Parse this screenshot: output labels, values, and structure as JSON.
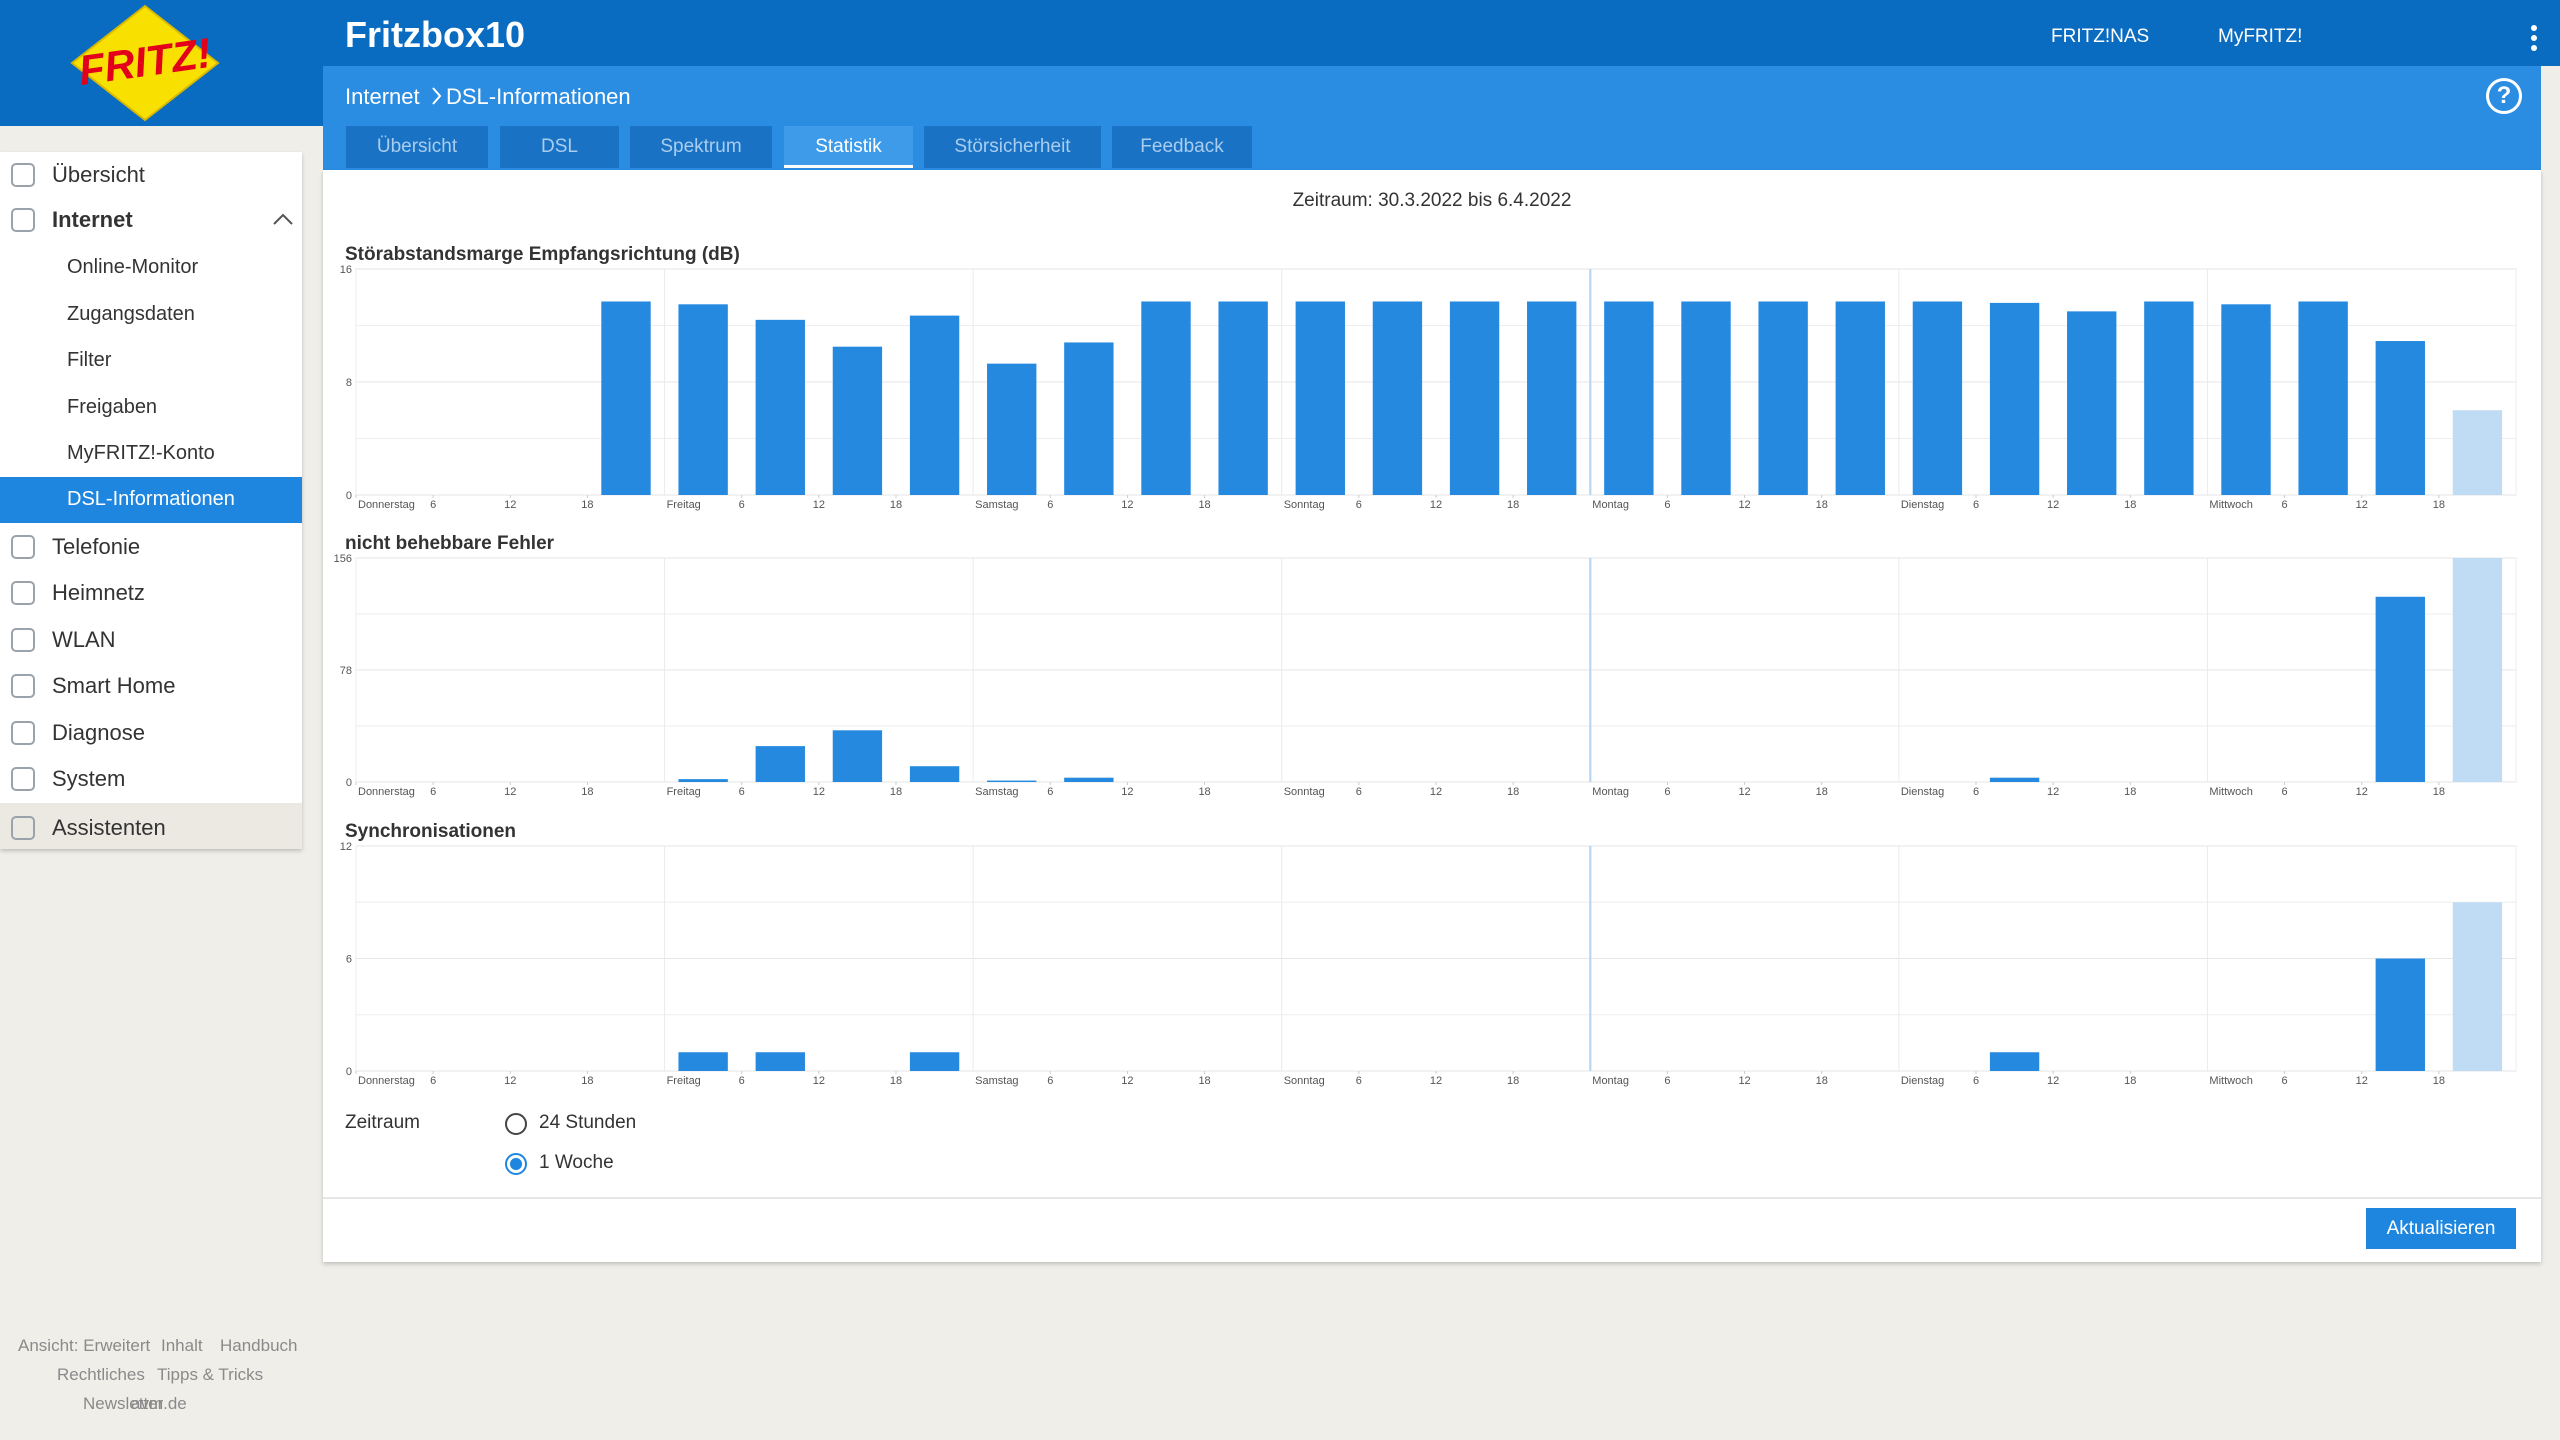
{
  "header": {
    "logo": "FRITZ!",
    "title": "Fritzbox10",
    "links": [
      "FRITZ!NAS",
      "MyFRITZ!"
    ],
    "help": "?"
  },
  "breadcrumb": [
    "Internet",
    "DSL-Informationen"
  ],
  "tabs": [
    "Übersicht",
    "DSL",
    "Spektrum",
    "Statistik",
    "Störsicherheit",
    "Feedback"
  ],
  "active_tab": 3,
  "sidebar": [
    {
      "label": "Übersicht"
    },
    {
      "label": "Internet",
      "children": [
        "Online-Monitor",
        "Zugangsdaten",
        "Filter",
        "Freigaben",
        "MyFRITZ!-Konto",
        "DSL-Informationen"
      ],
      "active_child": 5
    },
    {
      "label": "Telefonie"
    },
    {
      "label": "Heimnetz"
    },
    {
      "label": "WLAN"
    },
    {
      "label": "Smart Home"
    },
    {
      "label": "Diagnose"
    },
    {
      "label": "System"
    },
    {
      "label": "Assistenten"
    }
  ],
  "period": "Zeitraum: 30.3.2022 bis 6.4.2022",
  "chart_data": [
    {
      "type": "bar",
      "title": "Störabstandsmarge Empfangsrichtung (dB)",
      "color": "#2589e0",
      "partial_color": "#bfdcf4",
      "week_line": 96,
      "x": [
        3,
        9,
        15,
        21,
        27,
        33,
        39,
        45,
        51,
        57,
        63,
        69,
        75,
        81,
        87,
        93,
        99,
        105,
        111,
        117,
        123,
        129,
        135,
        141,
        147,
        153,
        159,
        165
      ],
      "values": [
        null,
        null,
        null,
        13.7,
        13.5,
        12.4,
        10.5,
        12.7,
        9.3,
        10.8,
        13.7,
        13.7,
        13.7,
        13.7,
        13.7,
        13.7,
        13.7,
        13.7,
        13.7,
        13.7,
        13.7,
        13.6,
        13.0,
        13.7,
        13.5,
        13.7,
        10.9,
        6.0
      ],
      "xlim": [
        0,
        168
      ],
      "ylim": [
        0,
        16
      ],
      "yticks": [
        0,
        8,
        16
      ],
      "minor_yticks": [
        4,
        12
      ],
      "xticks": [
        {
          "value": 0,
          "label": "Donnerstag"
        },
        {
          "value": 6,
          "label": "6"
        },
        {
          "value": 12,
          "label": "12"
        },
        {
          "value": 18,
          "label": "18"
        },
        {
          "value": 24,
          "label": "Freitag"
        },
        {
          "value": 30,
          "label": "6"
        },
        {
          "value": 36,
          "label": "12"
        },
        {
          "value": 42,
          "label": "18"
        },
        {
          "value": 48,
          "label": "Samstag"
        },
        {
          "value": 54,
          "label": "6"
        },
        {
          "value": 60,
          "label": "12"
        },
        {
          "value": 66,
          "label": "18"
        },
        {
          "value": 72,
          "label": "Sonntag"
        },
        {
          "value": 78,
          "label": "6"
        },
        {
          "value": 84,
          "label": "12"
        },
        {
          "value": 90,
          "label": "18"
        },
        {
          "value": 96,
          "label": "Montag"
        },
        {
          "value": 102,
          "label": "6"
        },
        {
          "value": 108,
          "label": "12"
        },
        {
          "value": 114,
          "label": "18"
        },
        {
          "value": 120,
          "label": "Dienstag"
        },
        {
          "value": 126,
          "label": "6"
        },
        {
          "value": 132,
          "label": "12"
        },
        {
          "value": 138,
          "label": "18"
        },
        {
          "value": 144,
          "label": "Mittwoch"
        },
        {
          "value": 150,
          "label": "6"
        },
        {
          "value": 156,
          "label": "12"
        },
        {
          "value": 162,
          "label": "18"
        }
      ]
    },
    {
      "type": "bar",
      "title": "nicht behebbare Fehler",
      "color": "#2589e0",
      "partial_color": "#bfdcf4",
      "week_line": 96,
      "x": [
        3,
        9,
        15,
        21,
        27,
        33,
        39,
        45,
        51,
        57,
        63,
        69,
        75,
        81,
        87,
        93,
        99,
        105,
        111,
        117,
        123,
        129,
        135,
        141,
        147,
        153,
        159,
        165
      ],
      "values": [
        0,
        0,
        0,
        0,
        2,
        25,
        36,
        11,
        1,
        3,
        0,
        0,
        0,
        0,
        0,
        0,
        0,
        0,
        0,
        0,
        0,
        3,
        0,
        0,
        0,
        0,
        129,
        156
      ],
      "xlim": [
        0,
        168
      ],
      "ylim": [
        0,
        156
      ],
      "yticks": [
        0,
        78,
        156
      ],
      "minor_yticks": [
        39,
        117
      ],
      "xticks": [
        {
          "value": 0,
          "label": "Donnerstag"
        },
        {
          "value": 6,
          "label": "6"
        },
        {
          "value": 12,
          "label": "12"
        },
        {
          "value": 18,
          "label": "18"
        },
        {
          "value": 24,
          "label": "Freitag"
        },
        {
          "value": 30,
          "label": "6"
        },
        {
          "value": 36,
          "label": "12"
        },
        {
          "value": 42,
          "label": "18"
        },
        {
          "value": 48,
          "label": "Samstag"
        },
        {
          "value": 54,
          "label": "6"
        },
        {
          "value": 60,
          "label": "12"
        },
        {
          "value": 66,
          "label": "18"
        },
        {
          "value": 72,
          "label": "Sonntag"
        },
        {
          "value": 78,
          "label": "6"
        },
        {
          "value": 84,
          "label": "12"
        },
        {
          "value": 90,
          "label": "18"
        },
        {
          "value": 96,
          "label": "Montag"
        },
        {
          "value": 102,
          "label": "6"
        },
        {
          "value": 108,
          "label": "12"
        },
        {
          "value": 114,
          "label": "18"
        },
        {
          "value": 120,
          "label": "Dienstag"
        },
        {
          "value": 126,
          "label": "6"
        },
        {
          "value": 132,
          "label": "12"
        },
        {
          "value": 138,
          "label": "18"
        },
        {
          "value": 144,
          "label": "Mittwoch"
        },
        {
          "value": 150,
          "label": "6"
        },
        {
          "value": 156,
          "label": "12"
        },
        {
          "value": 162,
          "label": "18"
        }
      ]
    },
    {
      "type": "bar",
      "title": "Synchronisationen",
      "color": "#2589e0",
      "partial_color": "#bfdcf4",
      "week_line": 96,
      "x": [
        3,
        9,
        15,
        21,
        27,
        33,
        39,
        45,
        51,
        57,
        63,
        69,
        75,
        81,
        87,
        93,
        99,
        105,
        111,
        117,
        123,
        129,
        135,
        141,
        147,
        153,
        159,
        165
      ],
      "values": [
        0,
        0,
        0,
        0,
        1,
        1,
        0,
        1,
        0,
        0,
        0,
        0,
        0,
        0,
        0,
        0,
        0,
        0,
        0,
        0,
        0,
        1,
        0,
        0,
        0,
        0,
        6,
        9
      ],
      "xlim": [
        0,
        168
      ],
      "ylim": [
        0,
        12
      ],
      "yticks": [
        0,
        6,
        12
      ],
      "minor_yticks": [
        3,
        9
      ],
      "xticks": [
        {
          "value": 0,
          "label": "Donnerstag"
        },
        {
          "value": 6,
          "label": "6"
        },
        {
          "value": 12,
          "label": "12"
        },
        {
          "value": 18,
          "label": "18"
        },
        {
          "value": 24,
          "label": "Freitag"
        },
        {
          "value": 30,
          "label": "6"
        },
        {
          "value": 36,
          "label": "12"
        },
        {
          "value": 42,
          "label": "18"
        },
        {
          "value": 48,
          "label": "Samstag"
        },
        {
          "value": 54,
          "label": "6"
        },
        {
          "value": 60,
          "label": "12"
        },
        {
          "value": 66,
          "label": "18"
        },
        {
          "value": 72,
          "label": "Sonntag"
        },
        {
          "value": 78,
          "label": "6"
        },
        {
          "value": 84,
          "label": "12"
        },
        {
          "value": 90,
          "label": "18"
        },
        {
          "value": 96,
          "label": "Montag"
        },
        {
          "value": 102,
          "label": "6"
        },
        {
          "value": 108,
          "label": "12"
        },
        {
          "value": 114,
          "label": "18"
        },
        {
          "value": 120,
          "label": "Dienstag"
        },
        {
          "value": 126,
          "label": "6"
        },
        {
          "value": 132,
          "label": "12"
        },
        {
          "value": 138,
          "label": "18"
        },
        {
          "value": 144,
          "label": "Mittwoch"
        },
        {
          "value": 150,
          "label": "6"
        },
        {
          "value": 156,
          "label": "12"
        },
        {
          "value": 162,
          "label": "18"
        }
      ]
    }
  ],
  "form": {
    "label": "Zeitraum",
    "options": [
      "24 Stunden",
      "1 Woche"
    ],
    "selected": 1,
    "button": "Aktualisieren"
  },
  "footer": [
    [
      "Ansicht: Erweitert",
      "Inhalt",
      "Handbuch"
    ],
    [
      "Rechtliches",
      "Tipps & Tricks"
    ],
    [
      "Newsletter",
      "avm.de"
    ]
  ]
}
